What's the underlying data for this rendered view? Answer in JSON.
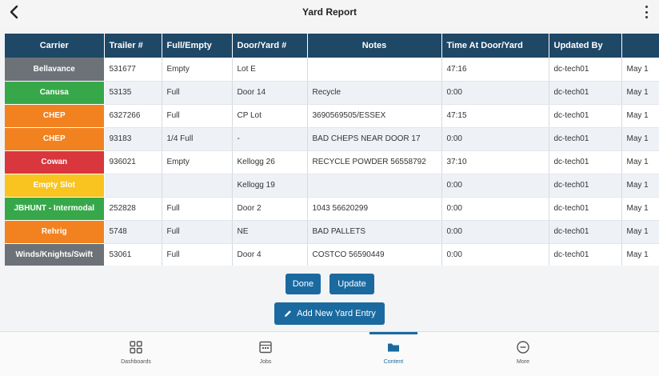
{
  "header": {
    "title": "Yard Report",
    "back_icon": "chevron-left-icon",
    "menu_icon": "kebab-menu-icon"
  },
  "table": {
    "columns": [
      "Carrier",
      "Trailer #",
      "Full/Empty",
      "Door/Yard #",
      "Notes",
      "Time At Door/Yard",
      "Updated By",
      ""
    ],
    "rows": [
      {
        "carrier": "Bellavance",
        "color": "#6d7278",
        "trailer": "531677",
        "full": "Empty",
        "door": "Lot E",
        "notes": "",
        "time": "47:16",
        "updated_by": "dc-tech01",
        "date": "May 1"
      },
      {
        "carrier": "Canusa",
        "color": "#37a84a",
        "trailer": "53135",
        "full": "Full",
        "door": "Door 14",
        "notes": "Recycle",
        "time": "0:00",
        "updated_by": "dc-tech01",
        "date": "May 1"
      },
      {
        "carrier": "CHEP",
        "color": "#f28220",
        "trailer": "6327266",
        "full": "Full",
        "door": "CP Lot",
        "notes": "3690569505/ESSEX",
        "time": "47:15",
        "updated_by": "dc-tech01",
        "date": "May 1"
      },
      {
        "carrier": "CHEP",
        "color": "#f28220",
        "trailer": "93183",
        "full": "1/4 Full",
        "door": "-",
        "notes": "BAD CHEPS NEAR DOOR 17",
        "time": "0:00",
        "updated_by": "dc-tech01",
        "date": "May 1"
      },
      {
        "carrier": "Cowan",
        "color": "#d9363e",
        "trailer": "936021",
        "full": "Empty",
        "door": "Kellogg 26",
        "notes": "RECYCLE POWDER 56558792",
        "time": "37:10",
        "updated_by": "dc-tech01",
        "date": "May 1"
      },
      {
        "carrier": "Empty Slot",
        "color": "#f9c41f",
        "trailer": "",
        "full": "",
        "door": "Kellogg 19",
        "notes": "",
        "time": "0:00",
        "updated_by": "dc-tech01",
        "date": "May 1"
      },
      {
        "carrier": "JBHUNT - Intermodal",
        "color": "#37a84a",
        "trailer": "252828",
        "full": "Full",
        "door": "Door 2",
        "notes": "1043 56620299",
        "time": "0:00",
        "updated_by": "dc-tech01",
        "date": "May 1"
      },
      {
        "carrier": "Rehrig",
        "color": "#f28220",
        "trailer": "5748",
        "full": "Full",
        "door": "NE",
        "notes": "BAD PALLETS",
        "time": "0:00",
        "updated_by": "dc-tech01",
        "date": "May 1"
      },
      {
        "carrier": "Winds/Knights/Swift",
        "color": "#6d7278",
        "trailer": "53061",
        "full": "Full",
        "door": "Door 4",
        "notes": "COSTCO 56590449",
        "time": "0:00",
        "updated_by": "dc-tech01",
        "date": "May 1"
      }
    ]
  },
  "actions": {
    "done_label": "Done",
    "update_label": "Update",
    "add_label": "Add New Yard Entry"
  },
  "nav": {
    "items": [
      {
        "label": "Dashboards",
        "icon": "grid-icon"
      },
      {
        "label": "Jobs",
        "icon": "calendar-icon"
      },
      {
        "label": "Content",
        "icon": "folder-icon",
        "active": true
      },
      {
        "label": "More",
        "icon": "more-circle-icon"
      }
    ]
  },
  "colors": {
    "accent": "#1a6aa0",
    "header_row": "#1f4766"
  }
}
